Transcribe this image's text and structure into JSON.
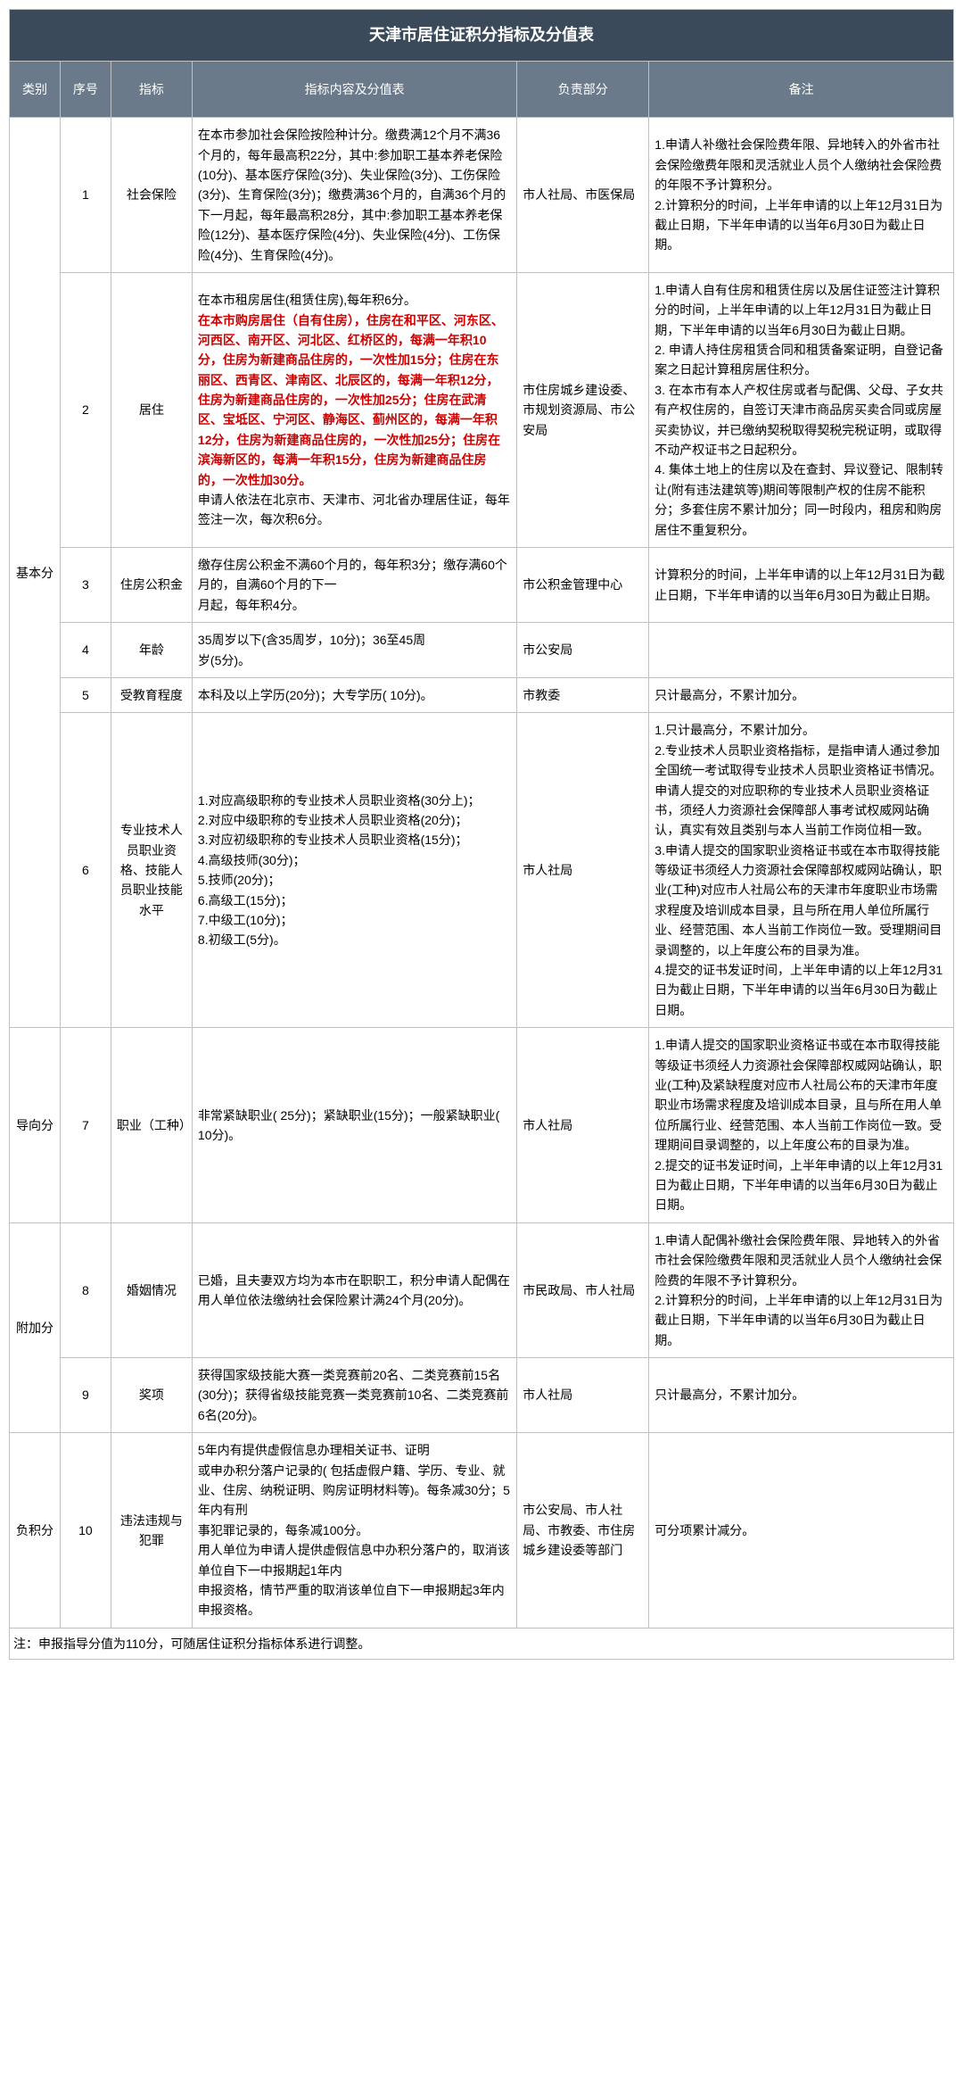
{
  "colors": {
    "title_bg": "#3a4a5a",
    "header_bg": "#6a7a8a",
    "header_text": "#ffffff",
    "border": "#c0c0c0",
    "red": "#d00000",
    "body_bg": "#ffffff"
  },
  "fonts": {
    "title_size": 18,
    "cell_size": 14,
    "family": "Microsoft YaHei"
  },
  "column_widths": {
    "category": 50,
    "sequence": 50,
    "indicator": 80,
    "content": 320,
    "department": 130,
    "remark": 300
  },
  "title": "天津市居住证积分指标及分值表",
  "headers": {
    "category": "类别",
    "sequence": "序号",
    "indicator": "指标",
    "content": "指标内容及分值表",
    "department": "负责部分",
    "remark": "备注"
  },
  "categories": {
    "basic": "基本分",
    "guide": "导向分",
    "bonus": "附加分",
    "negative": "负积分"
  },
  "rows": [
    {
      "seq": "1",
      "indicator": "社会保险",
      "content_plain": "在本市参加社会保险按险种计分。缴费满12个月不满36个月的，每年最高积22分，其中:参加职工基本养老保险(10分)、基本医疗保险(3分)、失业保险(3分)、工伤保险(3分)、生育保险(3分)；缴费满36个月的，自满36个月的下一月起，每年最高积28分，其中:参加职工基本养老保险(12分)、基本医疗保险(4分)、失业保险(4分)、工伤保险(4分)、生育保险(4分)。",
      "dept": "市人社局、市医保局",
      "remark": "1.申请人补缴社会保险费年限、异地转入的外省市社会保险缴费年限和灵活就业人员个人缴纳社会保险费的年限不予计算积分。\n2.计算积分的时间，上半年申请的以上年12月31日为截止日期，下半年申请的以当年6月30日为截止日期。"
    },
    {
      "seq": "2",
      "indicator": "居住",
      "content_prefix": "在本市租房居住(租赁住房),每年积6分。",
      "content_red": "在本市购房居住（自有住房），住房在和平区、河东区、河西区、南开区、河北区、红桥区的，每满一年积10分，住房为新建商品住房的，一次性加15分；住房在东丽区、西青区、津南区、北辰区的，每满一年积12分，住房为新建商品住房的，一次性加25分；住房在武清区、宝坻区、宁河区、静海区、蓟州区的，每满一年积12分，住房为新建商品住房的，一次性加25分；住房在滨海新区的，每满一年积15分，住房为新建商品住房的，一次性加30分。",
      "content_suffix": "申请人依法在北京市、天津市、河北省办理居住证，每年签注一次，每次积6分。",
      "dept": "市住房城乡建设委、市规划资源局、市公安局",
      "remark": "1.申请人自有住房和租赁住房以及居住证签注计算积分的时间，上半年申请的以上年12月31日为截止日期，下半年申请的以当年6月30日为截止日期。\n2. 申请人持住房租赁合同和租赁备案证明，自登记备案之日起计算租房居住积分。\n3. 在本市有本人产权住房或者与配偶、父母、子女共有产权住房的，自签订天津市商品房买卖合同或房屋买卖协议，并已缴纳契税取得契税完税证明，或取得不动产权证书之日起积分。\n4. 集体土地上的住房以及在查封、异议登记、限制转让(附有违法建筑等)期间等限制产权的住房不能积分；多套住房不累计加分；同一时段内，租房和购房居住不重复积分。"
    },
    {
      "seq": "3",
      "indicator": "住房公积金",
      "content_plain": "缴存住房公积金不满60个月的，每年积3分；缴存满60个月的，自满60个月的下一\n月起，每年积4分。",
      "dept": "市公积金管理中心",
      "remark": "计算积分的时间，上半年申请的以上年12月31日为截止日期，下半年申请的以当年6月30日为截止日期。"
    },
    {
      "seq": "4",
      "indicator": "年龄",
      "content_plain": "35周岁以下(含35周岁，10分)；36至45周\n岁(5分)。",
      "dept": "市公安局",
      "remark": ""
    },
    {
      "seq": "5",
      "indicator": "受教育程度",
      "content_plain": "本科及以上学历(20分)；大专学历( 10分)。",
      "dept": "市教委",
      "remark": "只计最高分，不累计加分。"
    },
    {
      "seq": "6",
      "indicator": "专业技术人员职业资格、技能人员职业技能水平",
      "content_plain": "1.对应高级职称的专业技术人员职业资格(30分上)；\n2.对应中级职称的专业技术人员职业资格(20分)；\n3.对应初级职称的专业技术人员职业资格(15分)；\n4.高级技师(30分)；\n5.技师(20分)；\n6.高级工(15分)；\n7.中级工(10分)；\n8.初级工(5分)。",
      "dept": "市人社局",
      "remark": "1.只计最高分，不累计加分。\n2.专业技术人员职业资格指标，是指申请人通过参加全国统一考试取得专业技术人员职业资格证书情况。申请人提交的对应职称的专业技术人员职业资格证书，须经人力资源社会保障部人事考试权威网站确认，真实有效且类别与本人当前工作岗位相一致。\n3.申请人提交的国家职业资格证书或在本市取得技能等级证书须经人力资源社会保障部权威网站确认，职业(工种)对应市人社局公布的天津市年度职业市场需求程度及培训成本目录，且与所在用人单位所属行业、经营范围、本人当前工作岗位一致。受理期间目录调整的，以上年度公布的目录为准。\n4.提交的证书发证时间，上半年申请的以上年12月31日为截止日期，下半年申请的以当年6月30日为截止日期。"
    },
    {
      "seq": "7",
      "indicator": "职业（工种）",
      "content_plain": "非常紧缺职业( 25分)；紧缺职业(15分)；一般紧缺职业( 10分)。",
      "dept": "市人社局",
      "remark": "1.申请人提交的国家职业资格证书或在本市取得技能等级证书须经人力资源社会保障部权威网站确认，职业(工种)及紧缺程度对应市人社局公布的天津市年度职业市场需求程度及培训成本目录，且与所在用人单位所属行业、经营范围、本人当前工作岗位一致。受理期间目录调整的，以上年度公布的目录为准。\n2.提交的证书发证时间，上半年申请的以上年12月31日为截止日期，下半年申请的以当年6月30日为截止日期。"
    },
    {
      "seq": "8",
      "indicator": "婚姻情况",
      "content_plain": "已婚，且夫妻双方均为本市在职职工，积分申请人配偶在用人单位依法缴纳社会保险累计满24个月(20分)。",
      "dept": "市民政局、市人社局",
      "remark": "1.申请人配偶补缴社会保险费年限、异地转入的外省市社会保险缴费年限和灵活就业人员个人缴纳社会保险费的年限不予计算积分。\n2.计算积分的时间，上半年申请的以上年12月31日为截止日期，下半年申请的以当年6月30日为截止日期。"
    },
    {
      "seq": "9",
      "indicator": "奖项",
      "content_plain": "获得国家级技能大赛一类竞赛前20名、二类竞赛前15名(30分)；获得省级技能竞赛一类竞赛前10名、二类竞赛前6名(20分)。",
      "dept": "市人社局",
      "remark": "只计最高分，不累计加分。"
    },
    {
      "seq": "10",
      "indicator": "违法违规与犯罪",
      "content_plain": "5年内有提供虚假信息办理相关证书、证明\n或申办积分落户记录的( 包括虚假户籍、学历、专业、就业、住房、纳税证明、购房证明材料等)。每条减30分；5年内有刑\n事犯罪记录的，每条减100分。\n用人单位为申请人提供虚假信息中办积分落户的，取消该单位自下一中报期起1年内\n申报资格，情节严重的取消该单位自下一申报期起3年内申报资格。",
      "dept": "市公安局、市人社局、市教委、市住房城乡建设委等部门",
      "remark": "可分项累计减分。"
    }
  ],
  "footnote": "注：申报指导分值为110分，可随居住证积分指标体系进行调整。"
}
